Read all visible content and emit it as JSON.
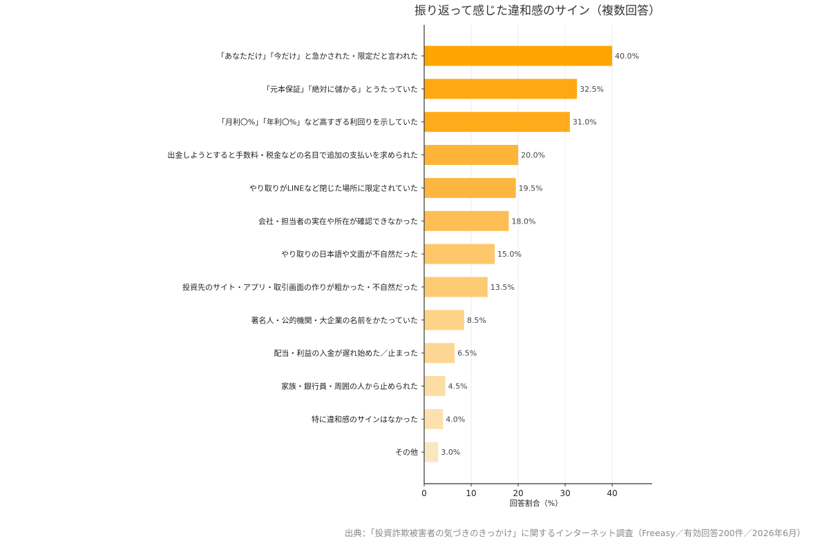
{
  "chart_data": {
    "type": "bar",
    "orientation": "horizontal",
    "title": "振り返って感じた違和感のサイン（複数回答）",
    "xlabel": "回答割合（%）",
    "ylabel": "",
    "xlim": [
      0,
      48.5
    ],
    "xticks": [
      "0",
      "10",
      "20",
      "30",
      "40"
    ],
    "grid": "vertical",
    "categories": [
      "「あなただけ」「今だけ」と急かされた・限定だと言われた",
      "「元本保証」「絶対に儲かる」とうたっていた",
      "「月利〇%」「年利〇%」など高すぎる利回りを示していた",
      "出金しようとすると手数料・税金などの名目で追加の支払いを求められた",
      "やり取りがLINEなど閉じた場所に限定されていた",
      "会社・担当者の実在や所在が確認できなかった",
      "やり取りの日本語や文面が不自然だった",
      "投資先のサイト・アプリ・取引画面の作りが粗かった・不自然だった",
      "著名人・公的機関・大企業の名前をかたっていた",
      "配当・利益の入金が遅れ始めた／止まった",
      "家族・銀行員・周囲の人から止められた",
      "特に違和感のサインはなかった",
      "その他"
    ],
    "values": [
      40.0,
      32.5,
      31.0,
      20.0,
      19.5,
      18.0,
      15.0,
      13.5,
      8.5,
      6.5,
      4.5,
      4.0,
      3.0
    ],
    "value_labels": [
      "40.0%",
      "32.5%",
      "31.0%",
      "20.0%",
      "19.5%",
      "18.0%",
      "15.0%",
      "13.5%",
      "8.5%",
      "6.5%",
      "4.5%",
      "4.0%",
      "3.0%"
    ],
    "bar_colors": [
      "#FFA500",
      "#FFA812",
      "#FFAB1C",
      "#FDB438",
      "#FDB740",
      "#FDBE55",
      "#FDC76A",
      "#FDCA74",
      "#FDD387",
      "#FDD693",
      "#FCDDA4",
      "#FCE1AF",
      "#FCE6BF"
    ],
    "source": "出典：「投資詐欺被害者の気づきのきっかけ」に関するインターネット調査（Freeasy／有効回答200件／2026年6月）"
  }
}
